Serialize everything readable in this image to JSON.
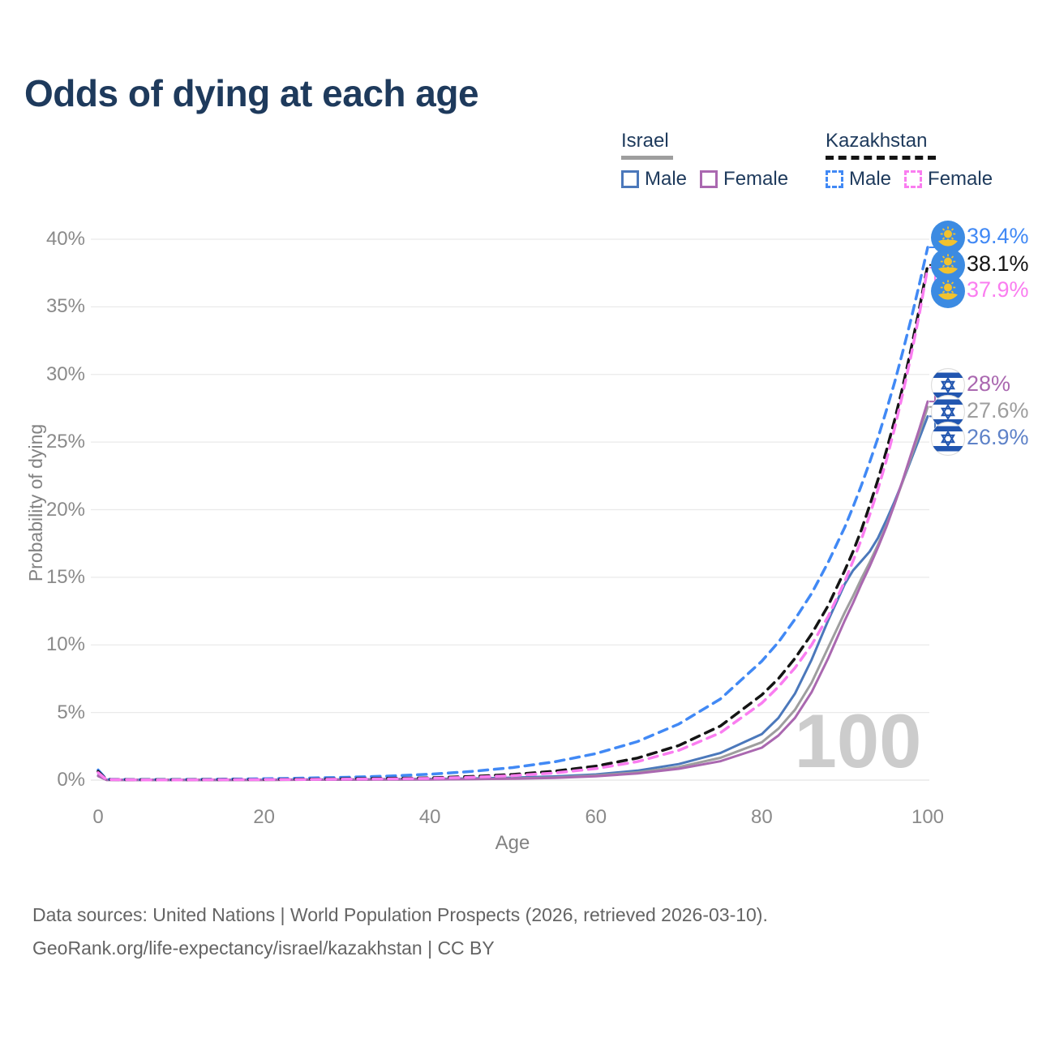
{
  "title": "Odds of dying at each age",
  "colors": {
    "title_text": "#1e3a5c",
    "axis_text": "#8a8a8a",
    "grid": "#eaeaea",
    "watermark": "#cccccc",
    "footer_text": "#646464",
    "israel_underline": "#9e9e9e",
    "kazakhstan_underline": "#141414"
  },
  "legend": {
    "groups": [
      {
        "label": "Israel",
        "line_style": "solid",
        "underline_color": "#9e9e9e",
        "items": [
          {
            "label": "Male",
            "color": "#4b78bb"
          },
          {
            "label": "Female",
            "color": "#aa68b0"
          }
        ]
      },
      {
        "label": "Kazakhstan",
        "line_style": "dashed",
        "underline_color": "#141414",
        "items": [
          {
            "label": "Male",
            "color": "#4189f5"
          },
          {
            "label": "Female",
            "color": "#fa7df0"
          }
        ]
      }
    ]
  },
  "chart_data": {
    "type": "line",
    "title": "Odds of dying at each age",
    "xlabel": "Age",
    "ylabel": "Probability of dying",
    "xlim": [
      0,
      100
    ],
    "ylim": [
      0,
      40
    ],
    "x_ticks": [
      0,
      20,
      40,
      60,
      80,
      100
    ],
    "y_ticks": [
      "0%",
      "5%",
      "10%",
      "15%",
      "20%",
      "25%",
      "30%",
      "35%",
      "40%"
    ],
    "grid": "horizontal-only",
    "legend_position": "top-right",
    "watermark": "100",
    "x": [
      0,
      1,
      5,
      10,
      15,
      20,
      25,
      30,
      35,
      40,
      45,
      50,
      55,
      60,
      65,
      70,
      75,
      80,
      82,
      84,
      86,
      88,
      90,
      91,
      92,
      93,
      94,
      95,
      96,
      97,
      98,
      99,
      100
    ],
    "series": [
      {
        "name": "Kazakhstan Male",
        "country": "Kazakhstan",
        "flag": "kz",
        "color": "#4189f5",
        "dashed": true,
        "end_label": "39.4%",
        "end_value": 39.4,
        "values": [
          0.75,
          0.06,
          0.04,
          0.05,
          0.07,
          0.1,
          0.15,
          0.21,
          0.3,
          0.44,
          0.64,
          0.93,
          1.35,
          1.96,
          2.85,
          4.15,
          6.0,
          8.8,
          10.2,
          11.9,
          13.8,
          16.1,
          18.7,
          20.2,
          21.8,
          23.5,
          25.3,
          27.3,
          29.4,
          31.7,
          34.1,
          36.7,
          39.4
        ]
      },
      {
        "name": "Kazakhstan",
        "country": "Kazakhstan",
        "flag": "kz",
        "color": "#151515",
        "dashed": true,
        "end_label": "38.1%",
        "end_value": 38.1,
        "values": [
          0.65,
          0.05,
          0.03,
          0.03,
          0.04,
          0.05,
          0.07,
          0.1,
          0.13,
          0.17,
          0.27,
          0.42,
          0.66,
          1.04,
          1.63,
          2.56,
          4.0,
          6.3,
          7.5,
          9.0,
          10.8,
          12.9,
          15.5,
          16.9,
          18.5,
          20.3,
          22.2,
          24.3,
          26.6,
          29.1,
          31.9,
          34.9,
          38.1
        ]
      },
      {
        "name": "Kazakhstan Female",
        "country": "Kazakhstan",
        "flag": "kz",
        "color": "#fa7df0",
        "dashed": true,
        "end_label": "37.9%",
        "end_value": 37.9,
        "values": [
          0.55,
          0.04,
          0.02,
          0.02,
          0.03,
          0.04,
          0.05,
          0.07,
          0.09,
          0.13,
          0.21,
          0.33,
          0.53,
          0.85,
          1.37,
          2.2,
          3.5,
          5.7,
          6.9,
          8.3,
          10.0,
          12.1,
          14.7,
          16.2,
          17.8,
          19.6,
          21.5,
          23.6,
          26.0,
          28.6,
          31.4,
          34.5,
          37.9
        ]
      },
      {
        "name": "Israel Female",
        "country": "Israel",
        "flag": "il",
        "color": "#aa68b0",
        "dashed": false,
        "end_label": "28%",
        "end_value": 28.0,
        "values": [
          0.3,
          0.02,
          0.01,
          0.01,
          0.01,
          0.02,
          0.03,
          0.03,
          0.04,
          0.05,
          0.07,
          0.1,
          0.17,
          0.29,
          0.49,
          0.84,
          1.4,
          2.4,
          3.3,
          4.6,
          6.5,
          9.0,
          11.8,
          13.1,
          14.5,
          15.8,
          17.2,
          18.7,
          20.4,
          22.2,
          24.1,
          26.0,
          28.0
        ]
      },
      {
        "name": "Israel",
        "country": "Israel",
        "flag": "il",
        "color": "#9e9e9e",
        "dashed": false,
        "end_label": "27.6%",
        "end_value": 27.6,
        "values": [
          0.32,
          0.02,
          0.01,
          0.01,
          0.02,
          0.02,
          0.03,
          0.04,
          0.05,
          0.06,
          0.08,
          0.12,
          0.2,
          0.34,
          0.57,
          0.97,
          1.65,
          2.8,
          3.8,
          5.2,
          7.2,
          9.8,
          12.4,
          13.6,
          14.9,
          16.1,
          17.4,
          18.8,
          20.4,
          22.1,
          23.9,
          25.7,
          27.6
        ]
      },
      {
        "name": "Israel Male",
        "country": "Israel",
        "flag": "il",
        "color": "#4b78bb",
        "label_color": "#5e82c8",
        "dashed": false,
        "end_label": "26.9%",
        "end_value": 26.9,
        "values": [
          0.35,
          0.03,
          0.01,
          0.02,
          0.02,
          0.03,
          0.04,
          0.05,
          0.07,
          0.09,
          0.12,
          0.18,
          0.27,
          0.42,
          0.7,
          1.19,
          2.0,
          3.4,
          4.6,
          6.4,
          8.9,
          11.8,
          14.5,
          15.5,
          16.2,
          16.9,
          17.9,
          19.2,
          20.6,
          22.1,
          23.7,
          25.3,
          26.9
        ]
      }
    ]
  },
  "footer": {
    "line1": "Data sources: United Nations | World Population Prospects (2026, retrieved 2026-03-10).",
    "line2": "GeoRank.org/life-expectancy/israel/kazakhstan | CC BY"
  }
}
